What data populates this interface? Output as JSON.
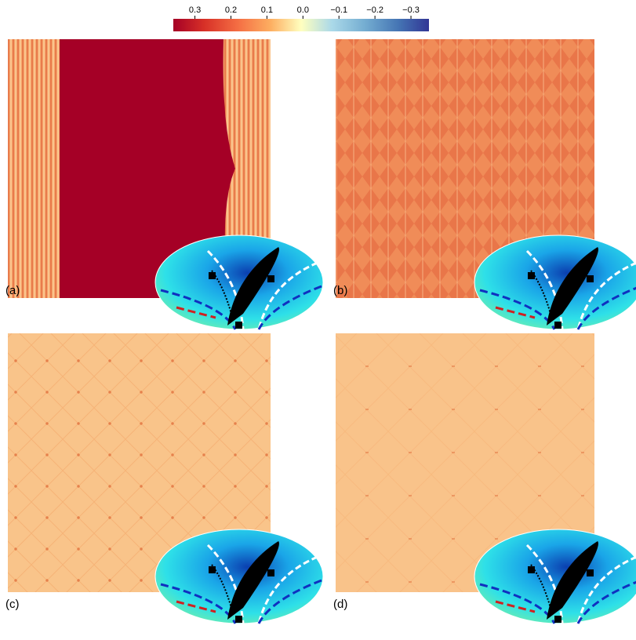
{
  "colorbar": {
    "lim": [
      0.36,
      -0.35
    ],
    "ticks": [
      0.3,
      0.2,
      0.1,
      {
        "value": 0,
        "label": "0.0"
      },
      {
        "value": -0.1,
        "label": "−0.1"
      },
      {
        "value": -0.2,
        "label": "−0.2"
      },
      {
        "value": -0.3,
        "label": "−0.3"
      }
    ]
  },
  "panels": [
    {
      "label": "(a)"
    },
    {
      "label": "(b)"
    },
    {
      "label": "(c)"
    },
    {
      "label": "(d)"
    }
  ]
}
